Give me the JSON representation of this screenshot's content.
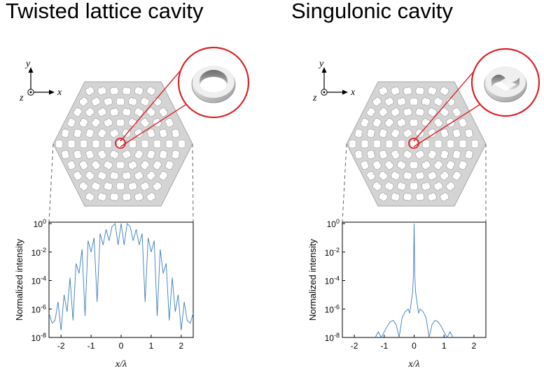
{
  "figure": {
    "left_title": "Twisted lattice cavity",
    "right_title": "Singulonic cavity",
    "axis_labels": {
      "x": "x",
      "y": "y",
      "z": "z"
    }
  },
  "colors": {
    "curve": "#3a7dbd",
    "highlight": "#d9242a",
    "slab": "#d4d4d4"
  },
  "chart_data": [
    {
      "type": "line",
      "title": "",
      "xlabel": "x/λ",
      "ylabel": "Normalized intensity",
      "x_ticks": [
        "-2",
        "-1",
        "0",
        "1",
        "2"
      ],
      "y_ticks": [
        "10^0",
        "10^-2",
        "10^-4",
        "10^-6",
        "10^-8"
      ],
      "xlim": [
        -2.4,
        2.4
      ],
      "ylim_log10": [
        -8,
        0.1
      ],
      "series": [
        {
          "x": [
            -2.4,
            -2.3,
            -2.2,
            -2.1,
            -2.0,
            -1.9,
            -1.8,
            -1.7,
            -1.6,
            -1.5,
            -1.4,
            -1.3,
            -1.2,
            -1.1,
            -1.0,
            -0.9,
            -0.8,
            -0.7,
            -0.6,
            -0.5,
            -0.4,
            -0.3,
            -0.2,
            -0.1,
            0.0,
            0.1,
            0.2,
            0.3,
            0.4,
            0.5,
            0.6,
            0.7,
            0.8,
            0.9,
            1.0,
            1.1,
            1.2,
            1.3,
            1.4,
            1.5,
            1.6,
            1.7,
            1.8,
            1.9,
            2.0,
            2.1,
            2.2,
            2.3,
            2.4
          ],
          "log10_y": [
            -6.3,
            -7.0,
            -6.8,
            -5.5,
            -7.5,
            -5.0,
            -6.2,
            -3.8,
            -6.8,
            -2.8,
            -3.5,
            -1.8,
            -6.5,
            -1.2,
            -2.0,
            -1.0,
            -5.5,
            -0.7,
            -1.5,
            -0.4,
            -1.2,
            -0.2,
            0.0,
            -1.5,
            0.0,
            -1.5,
            0.0,
            -0.2,
            -1.2,
            -0.4,
            -1.5,
            -0.7,
            -5.5,
            -1.0,
            -2.0,
            -1.2,
            -6.5,
            -1.8,
            -3.5,
            -2.8,
            -6.8,
            -3.8,
            -6.2,
            -5.0,
            -7.5,
            -5.5,
            -6.8,
            -7.0,
            -6.3
          ]
        }
      ]
    },
    {
      "type": "line",
      "title": "",
      "xlabel": "x/λ",
      "ylabel": "Normalized intensity",
      "x_ticks": [
        "-2",
        "-1",
        "0",
        "1",
        "2"
      ],
      "y_ticks": [
        "10^0",
        "10^-2",
        "10^-4",
        "10^-6",
        "10^-8"
      ],
      "xlim": [
        -2.4,
        2.4
      ],
      "ylim_log10": [
        -8,
        0.1
      ],
      "series": [
        {
          "x": [
            -1.3,
            -1.2,
            -1.1,
            -1.0,
            -0.9,
            -0.8,
            -0.7,
            -0.6,
            -0.5,
            -0.4,
            -0.3,
            -0.2,
            -0.15,
            -0.1,
            -0.05,
            -0.02,
            0.0,
            0.02,
            0.05,
            0.1,
            0.15,
            0.2,
            0.3,
            0.4,
            0.5,
            0.6,
            0.7,
            0.8,
            0.9,
            1.0,
            1.1,
            1.2,
            1.3
          ],
          "log10_y": [
            -8.0,
            -7.6,
            -8.0,
            -7.6,
            -7.2,
            -6.9,
            -6.8,
            -7.1,
            -8.0,
            -6.6,
            -6.2,
            -6.0,
            -6.3,
            -5.6,
            -4.8,
            -3.5,
            0.0,
            -3.5,
            -4.8,
            -5.6,
            -6.3,
            -6.0,
            -6.2,
            -6.6,
            -8.0,
            -7.1,
            -6.8,
            -6.9,
            -7.2,
            -7.6,
            -8.0,
            -7.6,
            -8.0
          ]
        }
      ]
    }
  ]
}
